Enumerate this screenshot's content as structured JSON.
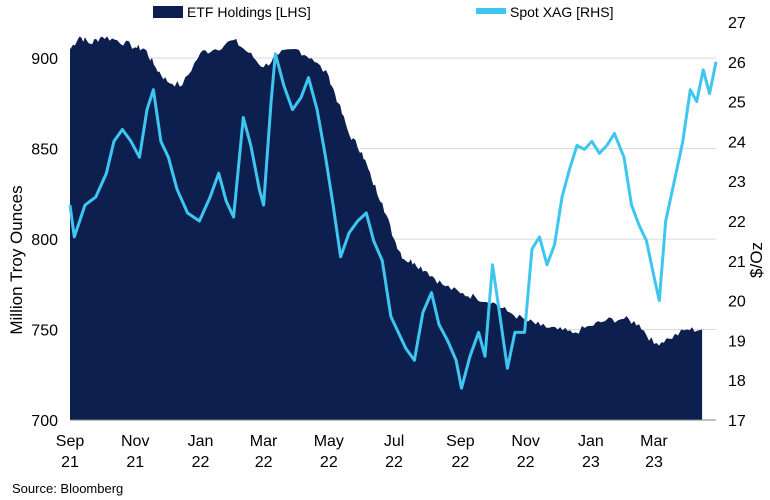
{
  "chart_data": {
    "type": "area+line",
    "legend": {
      "placement": "top",
      "items": [
        "ETF Holdings [LHS]",
        "Spot XAG [RHS]"
      ]
    },
    "ylabel_left": "Million Troy  Ounces",
    "ylabel_right": "$/Oz",
    "source": "Source: Bloomberg",
    "ylim_left": [
      700,
      920
    ],
    "ylim_right": [
      17,
      27
    ],
    "yticks_left": [
      "700",
      "750",
      "800",
      "850",
      "900"
    ],
    "yticks_right": [
      "17",
      "18",
      "19",
      "20",
      "21",
      "22",
      "23",
      "24",
      "25",
      "26",
      "27"
    ],
    "x_ticks": [
      {
        "month": "Sep",
        "year": "21"
      },
      {
        "month": "Nov",
        "year": "21"
      },
      {
        "month": "Jan",
        "year": "22"
      },
      {
        "month": "Mar",
        "year": "22"
      },
      {
        "month": "May",
        "year": "22"
      },
      {
        "month": "Jul",
        "year": "22"
      },
      {
        "month": "Sep",
        "year": "22"
      },
      {
        "month": "Nov",
        "year": "22"
      },
      {
        "month": "Jan",
        "year": "23"
      },
      {
        "month": "Mar",
        "year": "23"
      }
    ],
    "grid": "horizontal",
    "colors": {
      "etf": "#0d1f4f",
      "xag": "#3ec6f0",
      "grid": "#d9d9d9"
    },
    "series": [
      {
        "name": "ETF Holdings [LHS]",
        "axis": "left",
        "kind": "area",
        "points": [
          [
            "2021-09-01",
            905
          ],
          [
            "2021-09-10",
            912
          ],
          [
            "2021-09-20",
            908
          ],
          [
            "2021-10-01",
            912
          ],
          [
            "2021-10-15",
            910
          ],
          [
            "2021-11-01",
            906
          ],
          [
            "2021-11-10",
            905
          ],
          [
            "2021-11-20",
            895
          ],
          [
            "2021-12-01",
            887
          ],
          [
            "2021-12-15",
            885
          ],
          [
            "2022-01-01",
            903
          ],
          [
            "2022-01-15",
            905
          ],
          [
            "2022-02-01",
            910
          ],
          [
            "2022-02-15",
            903
          ],
          [
            "2022-03-01",
            895
          ],
          [
            "2022-03-15",
            902
          ],
          [
            "2022-04-01",
            905
          ],
          [
            "2022-04-15",
            900
          ],
          [
            "2022-05-01",
            890
          ],
          [
            "2022-05-10",
            875
          ],
          [
            "2022-05-20",
            858
          ],
          [
            "2022-06-01",
            848
          ],
          [
            "2022-06-10",
            833
          ],
          [
            "2022-06-20",
            820
          ],
          [
            "2022-07-01",
            800
          ],
          [
            "2022-07-10",
            789
          ],
          [
            "2022-07-20",
            787
          ],
          [
            "2022-08-01",
            782
          ],
          [
            "2022-08-15",
            775
          ],
          [
            "2022-09-01",
            770
          ],
          [
            "2022-09-15",
            768
          ],
          [
            "2022-10-01",
            765
          ],
          [
            "2022-10-15",
            760
          ],
          [
            "2022-11-01",
            755
          ],
          [
            "2022-11-15",
            752
          ],
          [
            "2022-12-01",
            750
          ],
          [
            "2022-12-15",
            748
          ],
          [
            "2023-01-01",
            752
          ],
          [
            "2023-01-15",
            755
          ],
          [
            "2023-02-01",
            756
          ],
          [
            "2023-02-15",
            753
          ],
          [
            "2023-03-01",
            742
          ],
          [
            "2023-03-15",
            745
          ],
          [
            "2023-04-01",
            750
          ],
          [
            "2023-04-15",
            750
          ]
        ]
      },
      {
        "name": "Spot XAG [RHS]",
        "axis": "right",
        "kind": "line",
        "points": [
          [
            "2021-09-01",
            22.4
          ],
          [
            "2021-09-05",
            21.6
          ],
          [
            "2021-09-15",
            22.4
          ],
          [
            "2021-09-25",
            22.6
          ],
          [
            "2021-10-05",
            23.2
          ],
          [
            "2021-10-12",
            24.0
          ],
          [
            "2021-10-20",
            24.3
          ],
          [
            "2021-10-28",
            24.0
          ],
          [
            "2021-11-05",
            23.6
          ],
          [
            "2021-11-12",
            24.8
          ],
          [
            "2021-11-18",
            25.3
          ],
          [
            "2021-11-25",
            24.0
          ],
          [
            "2021-12-02",
            23.6
          ],
          [
            "2021-12-10",
            22.8
          ],
          [
            "2021-12-20",
            22.2
          ],
          [
            "2021-12-31",
            22.0
          ],
          [
            "2022-01-10",
            22.6
          ],
          [
            "2022-01-18",
            23.2
          ],
          [
            "2022-01-25",
            22.5
          ],
          [
            "2022-02-01",
            22.1
          ],
          [
            "2022-02-10",
            24.6
          ],
          [
            "2022-02-17",
            23.9
          ],
          [
            "2022-02-25",
            22.8
          ],
          [
            "2022-03-01",
            22.4
          ],
          [
            "2022-03-08",
            25.0
          ],
          [
            "2022-03-12",
            26.2
          ],
          [
            "2022-03-20",
            25.4
          ],
          [
            "2022-03-28",
            24.8
          ],
          [
            "2022-04-05",
            25.1
          ],
          [
            "2022-04-12",
            25.6
          ],
          [
            "2022-04-20",
            24.8
          ],
          [
            "2022-04-28",
            23.6
          ],
          [
            "2022-05-05",
            22.4
          ],
          [
            "2022-05-12",
            21.1
          ],
          [
            "2022-05-20",
            21.7
          ],
          [
            "2022-05-28",
            22.0
          ],
          [
            "2022-06-05",
            22.2
          ],
          [
            "2022-06-12",
            21.5
          ],
          [
            "2022-06-20",
            21.0
          ],
          [
            "2022-06-28",
            19.6
          ],
          [
            "2022-07-05",
            19.2
          ],
          [
            "2022-07-12",
            18.8
          ],
          [
            "2022-07-20",
            18.5
          ],
          [
            "2022-07-28",
            19.7
          ],
          [
            "2022-08-05",
            20.2
          ],
          [
            "2022-08-12",
            19.4
          ],
          [
            "2022-08-20",
            19.0
          ],
          [
            "2022-08-28",
            18.5
          ],
          [
            "2022-09-02",
            17.8
          ],
          [
            "2022-09-10",
            18.6
          ],
          [
            "2022-09-18",
            19.2
          ],
          [
            "2022-09-24",
            18.6
          ],
          [
            "2022-10-01",
            20.9
          ],
          [
            "2022-10-08",
            19.6
          ],
          [
            "2022-10-15",
            18.3
          ],
          [
            "2022-10-22",
            19.2
          ],
          [
            "2022-10-31",
            19.2
          ],
          [
            "2022-11-07",
            21.3
          ],
          [
            "2022-11-14",
            21.6
          ],
          [
            "2022-11-21",
            20.9
          ],
          [
            "2022-11-28",
            21.4
          ],
          [
            "2022-12-05",
            22.6
          ],
          [
            "2022-12-12",
            23.3
          ],
          [
            "2022-12-19",
            23.9
          ],
          [
            "2022-12-26",
            23.8
          ],
          [
            "2023-01-02",
            24.0
          ],
          [
            "2023-01-09",
            23.7
          ],
          [
            "2023-01-16",
            23.9
          ],
          [
            "2023-01-23",
            24.2
          ],
          [
            "2023-02-01",
            23.6
          ],
          [
            "2023-02-08",
            22.4
          ],
          [
            "2023-02-15",
            21.9
          ],
          [
            "2023-02-22",
            21.5
          ],
          [
            "2023-03-01",
            20.6
          ],
          [
            "2023-03-06",
            20.0
          ],
          [
            "2023-03-12",
            22.0
          ],
          [
            "2023-03-20",
            23.0
          ],
          [
            "2023-03-28",
            24.0
          ],
          [
            "2023-04-04",
            25.3
          ],
          [
            "2023-04-10",
            25.0
          ],
          [
            "2023-04-16",
            25.8
          ],
          [
            "2023-04-22",
            25.2
          ],
          [
            "2023-04-28",
            26.0
          ]
        ]
      }
    ]
  }
}
